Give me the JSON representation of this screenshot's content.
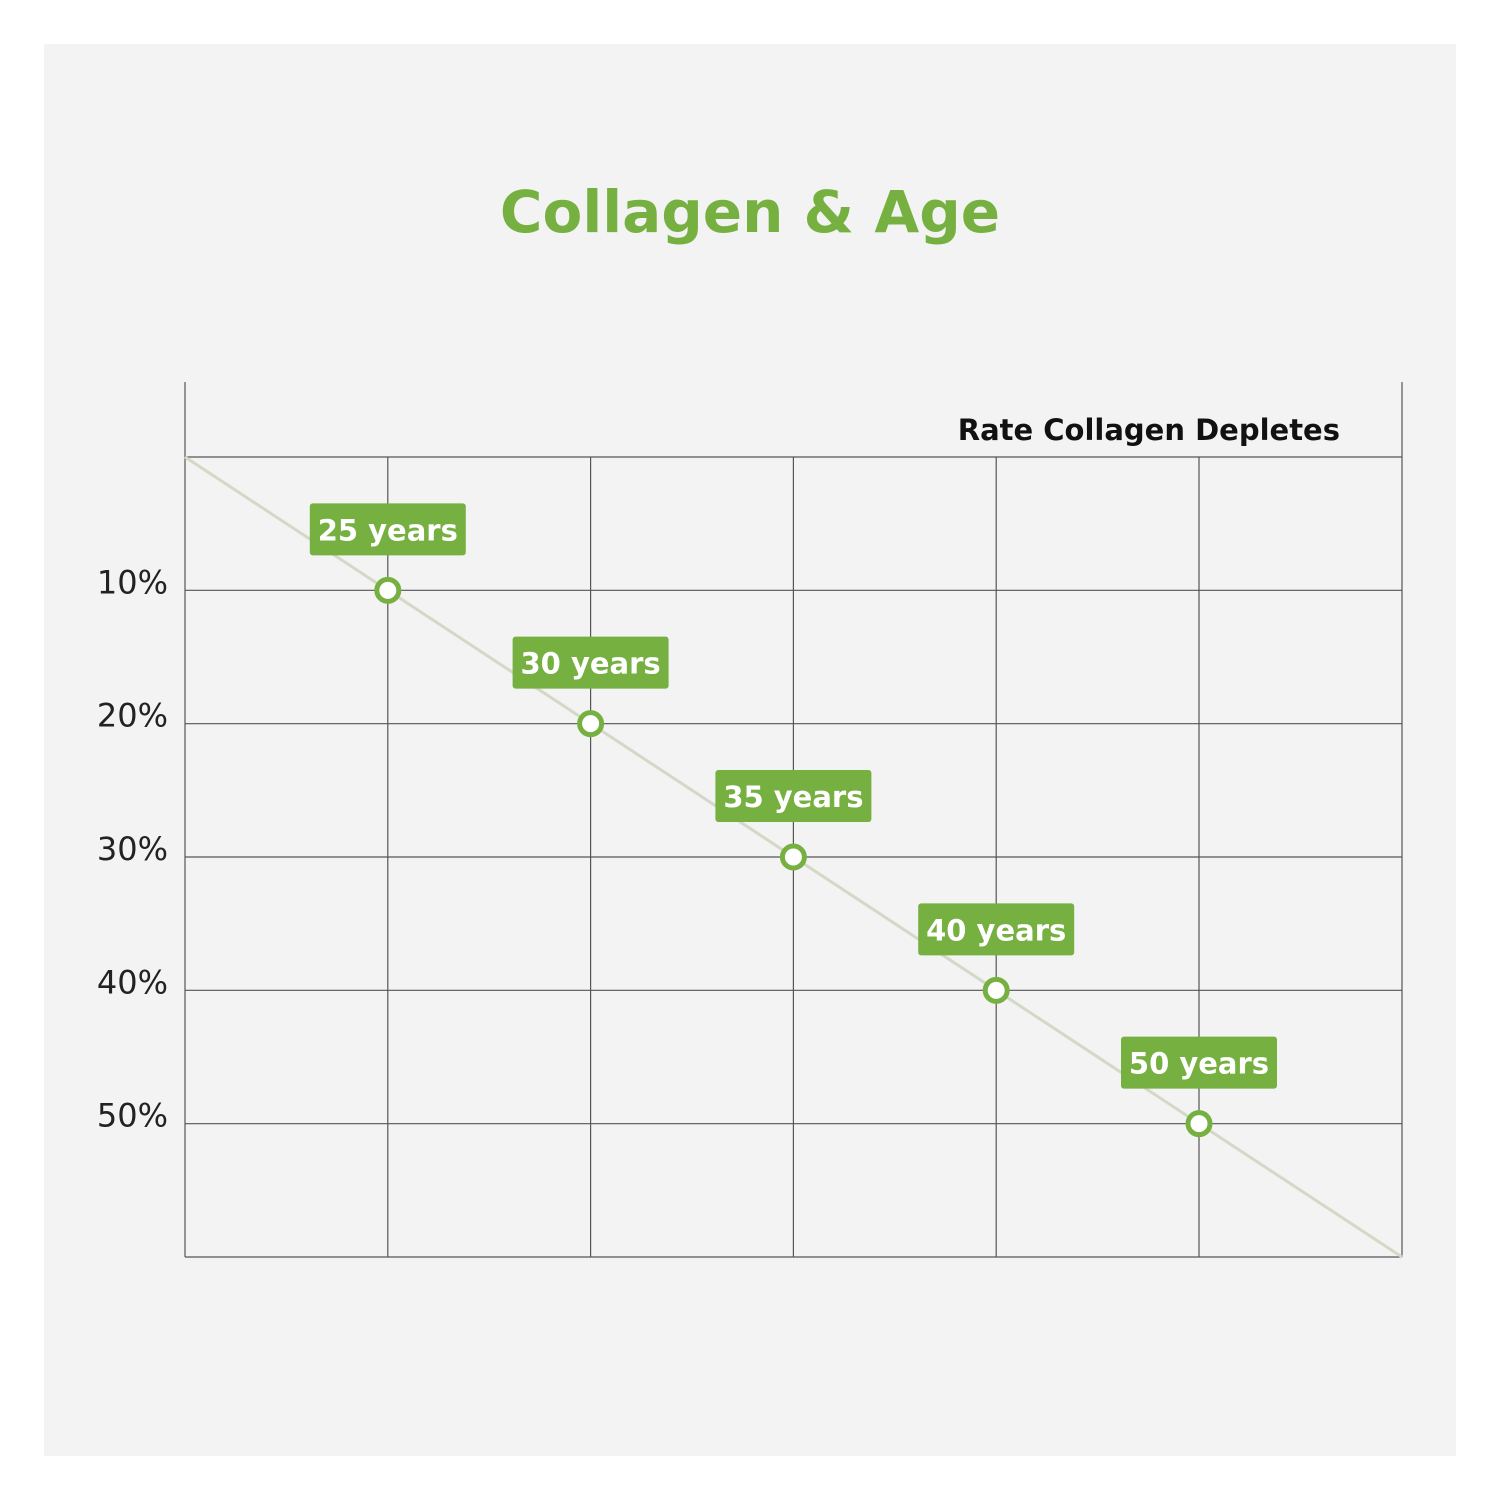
{
  "chart_data": {
    "type": "line",
    "title": "Collagen & Age",
    "subtitle": "Rate Collagen Depletes",
    "x": [
      "25 years",
      "30 years",
      "35 years",
      "40 years",
      "50 years"
    ],
    "values": [
      10,
      20,
      30,
      40,
      50
    ],
    "y_tick_labels": [
      "10%",
      "20%",
      "30%",
      "40%",
      "50%"
    ],
    "y_ticks": [
      10,
      20,
      30,
      40,
      50
    ],
    "ylim": [
      0,
      60
    ],
    "grid": true,
    "y_axis_inverted": true
  },
  "colors": {
    "accent": "#76b041",
    "background": "#f3f3f3",
    "grid": "#555555",
    "trend": "#d4d8c6"
  }
}
